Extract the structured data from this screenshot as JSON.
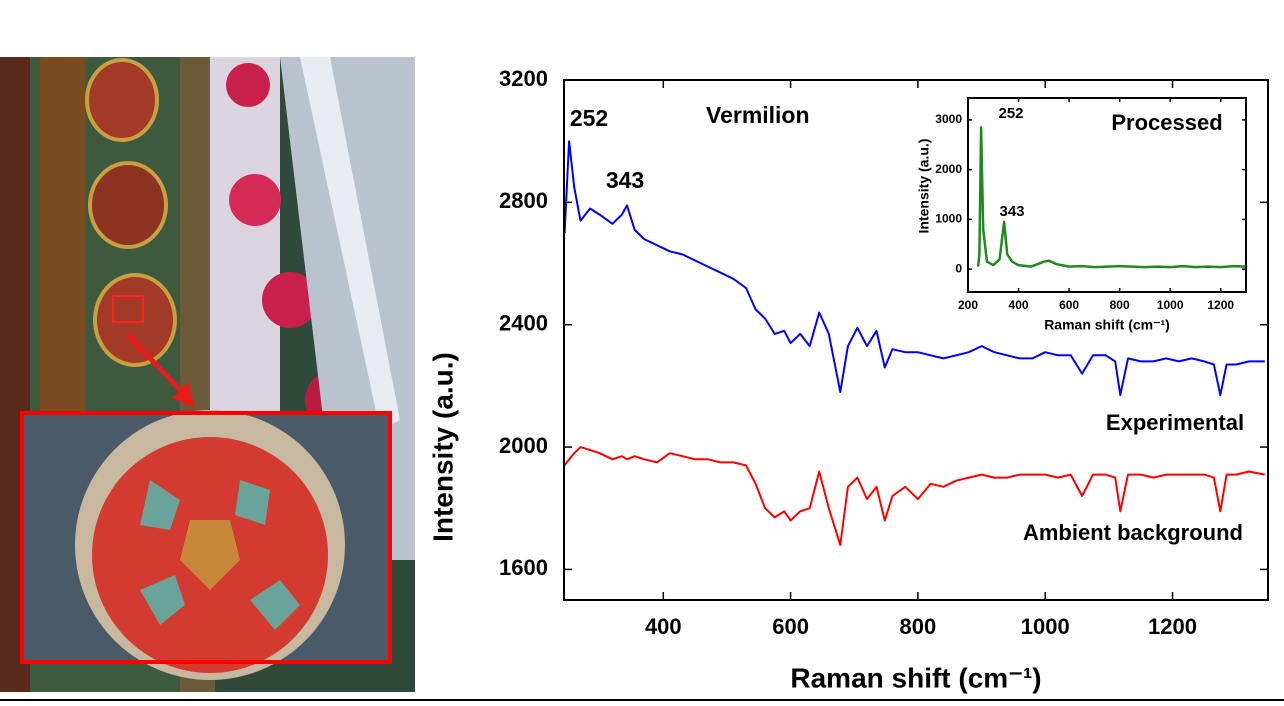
{
  "chart_data": [
    {
      "type": "line",
      "x_label": "Raman shift (cm⁻¹)",
      "y_label": "Intensity (a.u.)",
      "x": [
        245,
        252,
        260,
        270,
        285,
        300,
        320,
        335,
        343,
        355,
        370,
        390,
        410,
        430,
        450,
        470,
        490,
        510,
        530,
        545,
        560,
        575,
        590,
        600,
        615,
        630,
        645,
        660,
        678,
        690,
        705,
        720,
        735,
        748,
        760,
        780,
        800,
        820,
        840,
        860,
        880,
        900,
        920,
        940,
        960,
        980,
        1000,
        1020,
        1040,
        1058,
        1075,
        1095,
        1110,
        1118,
        1130,
        1150,
        1170,
        1190,
        1210,
        1230,
        1250,
        1265,
        1275,
        1285,
        1300,
        1320,
        1345
      ],
      "series": [
        {
          "name": "Experimental",
          "color": "#0000ff",
          "values": [
            2700,
            3000,
            2850,
            2740,
            2780,
            2760,
            2730,
            2760,
            2790,
            2710,
            2680,
            2660,
            2640,
            2630,
            2610,
            2590,
            2570,
            2550,
            2520,
            2450,
            2420,
            2370,
            2380,
            2340,
            2370,
            2330,
            2440,
            2370,
            2180,
            2330,
            2390,
            2330,
            2380,
            2260,
            2320,
            2310,
            2310,
            2300,
            2290,
            2300,
            2310,
            2330,
            2310,
            2300,
            2290,
            2290,
            2310,
            2300,
            2300,
            2240,
            2300,
            2300,
            2280,
            2170,
            2290,
            2280,
            2280,
            2290,
            2280,
            2290,
            2280,
            2270,
            2170,
            2270,
            2270,
            2280,
            2280
          ]
        },
        {
          "name": "Ambient background",
          "color": "#ff0000",
          "values": [
            1940,
            1960,
            1980,
            2000,
            1990,
            1980,
            1960,
            1970,
            1960,
            1970,
            1960,
            1950,
            1980,
            1970,
            1960,
            1960,
            1950,
            1950,
            1940,
            1880,
            1800,
            1770,
            1790,
            1760,
            1790,
            1800,
            1920,
            1800,
            1680,
            1870,
            1900,
            1830,
            1870,
            1760,
            1840,
            1870,
            1830,
            1880,
            1870,
            1890,
            1900,
            1910,
            1900,
            1900,
            1910,
            1910,
            1910,
            1900,
            1910,
            1840,
            1910,
            1910,
            1900,
            1790,
            1910,
            1910,
            1900,
            1910,
            1910,
            1910,
            1910,
            1900,
            1790,
            1910,
            1910,
            1920,
            1910
          ]
        }
      ],
      "xlim": [
        244,
        1350
      ],
      "xticks": [
        400,
        600,
        800,
        1000,
        1200
      ],
      "ylim": [
        1500,
        3200
      ],
      "yticks": [
        1600,
        2000,
        2400,
        2800,
        3200
      ],
      "annotations": [
        "252",
        "343",
        "Vermilion"
      ]
    },
    {
      "type": "line",
      "title": "Processed",
      "x_label": "Raman shift (cm⁻¹)",
      "y_label": "Intensity (a.u.)",
      "x": [
        240,
        245,
        252,
        260,
        275,
        300,
        325,
        343,
        355,
        375,
        400,
        450,
        500,
        520,
        550,
        600,
        650,
        700,
        750,
        800,
        850,
        900,
        950,
        1000,
        1050,
        1100,
        1150,
        1200,
        1250,
        1300
      ],
      "series": [
        {
          "color": "#1f8a1f",
          "values": [
            50,
            300,
            2850,
            800,
            150,
            80,
            200,
            950,
            300,
            150,
            80,
            50,
            150,
            170,
            100,
            50,
            60,
            40,
            50,
            60,
            50,
            40,
            50,
            40,
            60,
            40,
            50,
            40,
            60,
            50
          ]
        }
      ],
      "xlim": [
        200,
        1300
      ],
      "xticks": [
        200,
        400,
        600,
        800,
        1000,
        1200
      ],
      "ylim": [
        -460,
        3440
      ],
      "yticks": [
        0,
        1000,
        2000,
        3000
      ],
      "annotations": [
        "252",
        "343"
      ]
    }
  ]
}
